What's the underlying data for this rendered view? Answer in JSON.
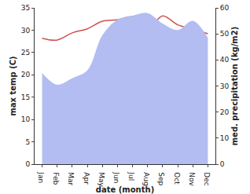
{
  "chart_data": {
    "type": "line",
    "x_label": "date (month)",
    "y_label": "max temp (C)",
    "y2_label": "med. precipitation (kg/m2)",
    "categories": [
      "Jan",
      "Feb",
      "Mar",
      "Apr",
      "May",
      "Jun",
      "Jul",
      "Aug",
      "Sep",
      "Oct",
      "Nov",
      "Dec"
    ],
    "series": [
      {
        "name": "med. precipitation",
        "type": "area",
        "axis": "y2",
        "color": "#b3bdf2",
        "values": [
          35,
          30.5,
          33,
          36,
          49.5,
          55.5,
          57,
          58,
          54,
          51.5,
          55,
          48.5
        ]
      },
      {
        "name": "max temp",
        "type": "line",
        "axis": "y",
        "color": "#d05050",
        "values": [
          28.2,
          27.8,
          29.4,
          30.3,
          32,
          32.3,
          33,
          30.3,
          33.2,
          31.2,
          30.3,
          29.2
        ]
      }
    ],
    "ylim": [
      0,
      35
    ],
    "yticks": [
      0,
      5,
      10,
      15,
      20,
      25,
      30,
      35
    ],
    "y2lim": [
      0,
      60
    ],
    "y2ticks": [
      0,
      10,
      20,
      30,
      40,
      50,
      60
    ],
    "grid": false
  }
}
